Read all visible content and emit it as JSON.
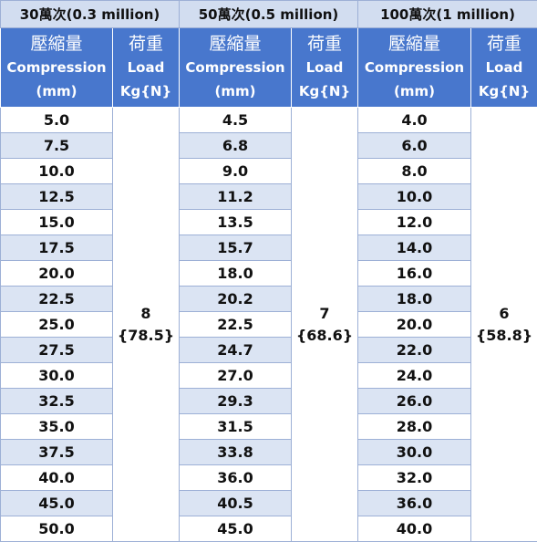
{
  "groups": [
    {
      "title": "30萬次(0.3 million)",
      "compression_header": [
        "壓縮量",
        "Compression",
        "(mm)"
      ],
      "load_header": [
        "荷重",
        "Load",
        "Kg{N}"
      ],
      "load_value": [
        "8",
        "{78.5}"
      ],
      "compression_values": [
        "5.0",
        "7.5",
        "10.0",
        "12.5",
        "15.0",
        "17.5",
        "20.0",
        "22.5",
        "25.0",
        "27.5",
        "30.0",
        "32.5",
        "35.0",
        "37.5",
        "40.0",
        "45.0",
        "50.0"
      ]
    },
    {
      "title": "50萬次(0.5 million)",
      "compression_header": [
        "壓縮量",
        "Compression",
        "(mm)"
      ],
      "load_header": [
        "荷重",
        "Load",
        "Kg{N}"
      ],
      "load_value": [
        "7",
        "{68.6}"
      ],
      "compression_values": [
        "4.5",
        "6.8",
        "9.0",
        "11.2",
        "13.5",
        "15.7",
        "18.0",
        "20.2",
        "22.5",
        "24.7",
        "27.0",
        "29.3",
        "31.5",
        "33.8",
        "36.0",
        "40.5",
        "45.0"
      ]
    },
    {
      "title": "100萬次(1 million)",
      "compression_header": [
        "壓縮量",
        "Compression",
        "(mm)"
      ],
      "load_header": [
        "荷重",
        "Load",
        "Kg{N}"
      ],
      "load_value": [
        "6",
        "{58.8}"
      ],
      "compression_values": [
        "4.0",
        "6.0",
        "8.0",
        "10.0",
        "12.0",
        "14.0",
        "16.0",
        "18.0",
        "20.0",
        "22.0",
        "24.0",
        "26.0",
        "28.0",
        "30.0",
        "32.0",
        "36.0",
        "40.0"
      ]
    }
  ],
  "colors": {
    "header_blue": "#4877cd",
    "group_header_bg": "#d2ddf0",
    "stripe": "#dbe4f3"
  }
}
